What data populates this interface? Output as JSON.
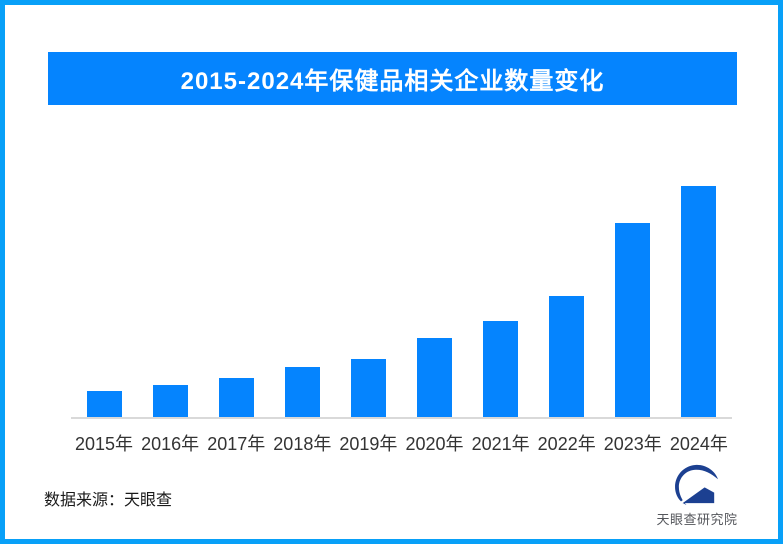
{
  "frame": {
    "border_color": "#08a0f8"
  },
  "header": {
    "title": "2015-2024年保健品相关企业数量变化",
    "bg_color": "#0584fe",
    "text_color": "#ffffff"
  },
  "chart_data": {
    "type": "bar",
    "title": "2015-2024年保健品相关企业数量变化",
    "categories": [
      "2015年",
      "2016年",
      "2017年",
      "2018年",
      "2019年",
      "2020年",
      "2021年",
      "2022年",
      "2023年",
      "2024年"
    ],
    "values": [
      11.3,
      13.9,
      16.9,
      21.6,
      25.1,
      34.2,
      41.6,
      52.4,
      84,
      100
    ],
    "values_note": "no numeric axis shown; values are relative bar heights as percent of tallest (2024) bar",
    "ylim": [
      0,
      100
    ],
    "xlabel": "",
    "ylabel": "",
    "grid": false,
    "legend": false,
    "bar_color": "#0584fe",
    "axis_line_color": "#d9d9d9",
    "label_color": "#333333"
  },
  "footer": {
    "source_text": "数据来源：天眼查"
  },
  "logo": {
    "text": "天眼查研究院",
    "icon": "tianyancha-eye-swoosh-icon",
    "icon_color": "#1c4091",
    "text_color": "#54565b"
  }
}
